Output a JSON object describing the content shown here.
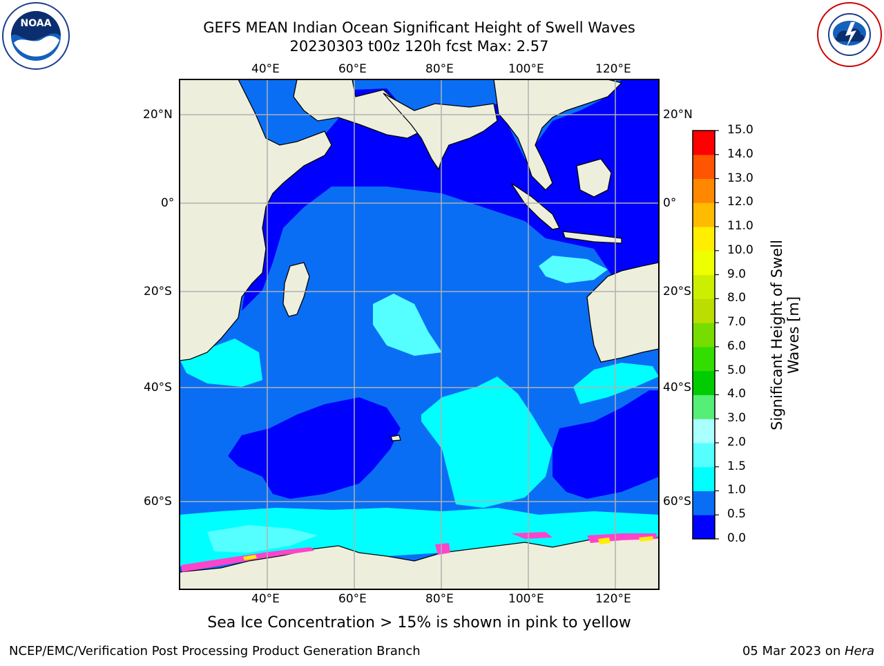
{
  "header": {
    "title_line1": "GEFS MEAN Indian Ocean Significant Height of Swell Waves",
    "title_line2": "20230303 t00z 120h fcst   Max: 2.57"
  },
  "logos": {
    "left": {
      "name": "NOAA",
      "ring_text": "NATIONAL OCEANIC AND ATMOSPHERIC ADMINISTRATION · U.S. DEPARTMENT OF COMMERCE"
    },
    "right": {
      "name": "NATIONAL WEATHER SERVICE"
    }
  },
  "map": {
    "projection": "cylindrical",
    "lon_range": [
      20,
      130
    ],
    "lat_range": [
      -74,
      28
    ],
    "top_lon_labels": [
      "40°E",
      "60°E",
      "80°E",
      "100°E",
      "120°E"
    ],
    "bottom_lon_labels": [
      "40°E",
      "60°E",
      "80°E",
      "100°E",
      "120°E"
    ],
    "left_lat_labels": [
      "20°N",
      "0°",
      "20°S",
      "40°S",
      "60°S"
    ],
    "right_lat_labels": [
      "20°N",
      "0°",
      "20°S",
      "40°S",
      "60°S"
    ],
    "gridlines": true,
    "colors": {
      "land": "#eeeedd",
      "very_low": "#0000ff",
      "low": "#0a6ef5",
      "mid": "#00ffff",
      "mid_light": "#55ffff",
      "gridline": "#b0b0b0",
      "sea_ice": "#ff44cc"
    }
  },
  "colorbar": {
    "label": "Significant Height of Swell Waves [m]",
    "ticks": [
      "0.0",
      "0.5",
      "1.0",
      "1.5",
      "2.0",
      "3.0",
      "4.0",
      "5.0",
      "6.0",
      "7.0",
      "8.0",
      "9.0",
      "10.0",
      "11.0",
      "12.0",
      "13.0",
      "14.0",
      "15.0"
    ],
    "colors": [
      "#0000ff",
      "#0a6ef5",
      "#00ffff",
      "#55ffff",
      "#aaffff",
      "#55ee77",
      "#00cc00",
      "#33dd00",
      "#77dd00",
      "#bbdd00",
      "#ccee00",
      "#eeff00",
      "#ffee00",
      "#ffbb00",
      "#ff8800",
      "#ff5500",
      "#ff0000"
    ]
  },
  "caption": "Sea Ice Concentration > 15% is shown in pink to yellow",
  "footer": {
    "left": "NCEP/EMC/Verification Post Processing Product Generation Branch",
    "right_date": "05 Mar 2023 on ",
    "right_machine": "Hera"
  }
}
